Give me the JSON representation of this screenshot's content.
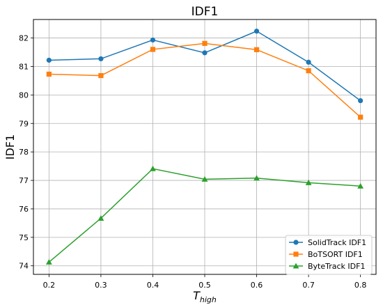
{
  "chart_data": {
    "type": "line",
    "title": "IDF1",
    "xlabel_main": "T",
    "xlabel_sub": "high",
    "ylabel": "IDF1",
    "x": [
      0.2,
      0.3,
      0.4,
      0.5,
      0.6,
      0.7,
      0.8
    ],
    "xticks": [
      "0.2",
      "0.3",
      "0.4",
      "0.5",
      "0.6",
      "0.7",
      "0.8"
    ],
    "yticks": [
      "74",
      "75",
      "76",
      "77",
      "78",
      "79",
      "80",
      "81",
      "82"
    ],
    "xlim": [
      0.17,
      0.83
    ],
    "ylim": [
      73.7,
      82.65
    ],
    "grid": true,
    "legend_position": "lower-right",
    "series": [
      {
        "name": "SolidTrack IDF1",
        "color": "#1f77b4",
        "marker": "circle",
        "values": [
          81.22,
          81.27,
          81.93,
          81.48,
          82.24,
          81.15,
          79.8
        ]
      },
      {
        "name": "BoTSORT IDF1",
        "color": "#ff7f0e",
        "marker": "square",
        "values": [
          80.73,
          80.68,
          81.6,
          81.81,
          81.59,
          80.85,
          79.22
        ]
      },
      {
        "name": "ByteTrack IDF1",
        "color": "#2ca02c",
        "marker": "triangle",
        "values": [
          74.13,
          75.67,
          77.41,
          77.04,
          77.08,
          76.92,
          76.8
        ]
      }
    ]
  }
}
